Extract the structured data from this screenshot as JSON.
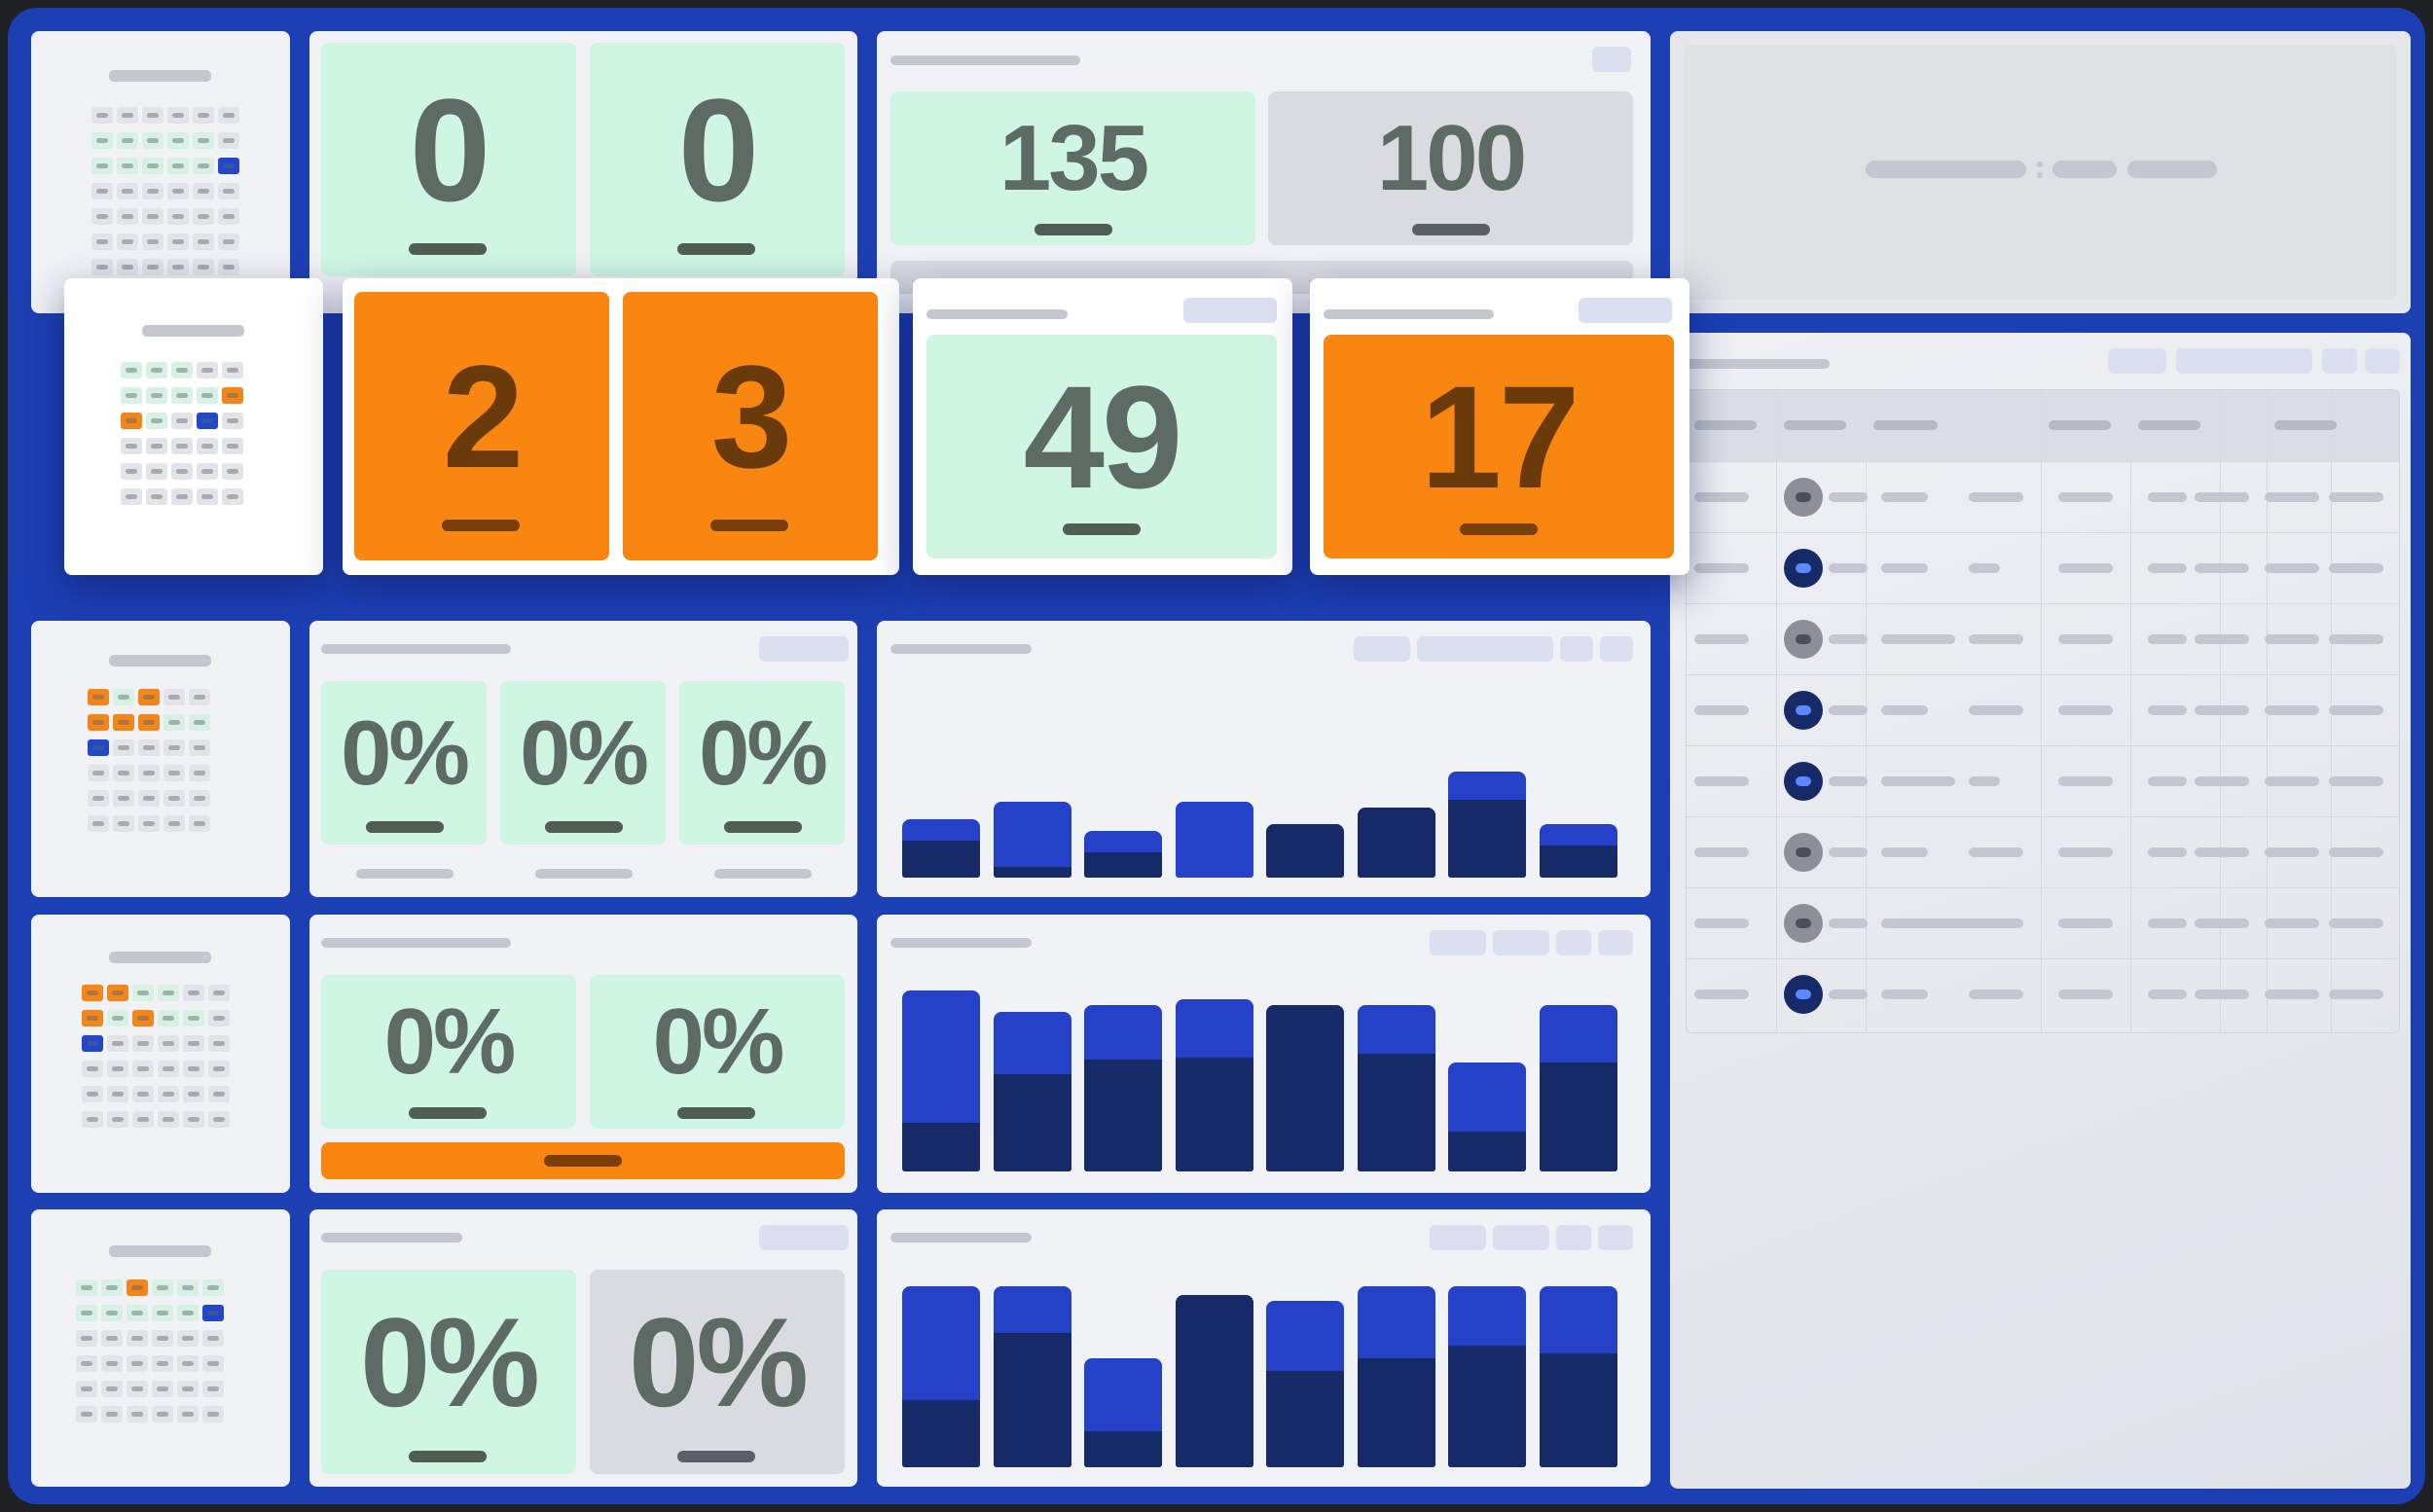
{
  "colors": {
    "frame": "#1c3fb3",
    "green_tile": "#cff6e3",
    "gray_tile": "#d9dbe1",
    "alert": "#f88610",
    "bar_light": "#2541c8",
    "bar_dark": "#172a68"
  },
  "row1": {
    "stat_a": "0",
    "stat_b": "0",
    "value_main": "135",
    "value_secondary": "100"
  },
  "row2": {
    "stat_a": "2",
    "stat_b": "3",
    "value_main": "49",
    "value_alert": "17"
  },
  "row3": {
    "pct_a": "0%",
    "pct_b": "0%",
    "pct_c": "0%"
  },
  "row4": {
    "pct_a": "0%",
    "pct_b": "0%"
  },
  "row5": {
    "pct_a": "0%",
    "pct_b": "0%"
  },
  "charts": [
    {
      "values": [
        [
          0.42,
          0.27
        ],
        [
          0.55,
          0.08
        ],
        [
          0.34,
          0.18
        ],
        [
          0.55,
          0.0
        ],
        [
          0.39,
          0.39
        ],
        [
          0.51,
          0.51
        ],
        [
          0.77,
          0.56
        ],
        [
          0.39,
          0.23
        ]
      ]
    },
    {
      "values": [
        [
          1.0,
          0.27
        ],
        [
          0.88,
          0.54
        ],
        [
          0.92,
          0.62
        ],
        [
          0.95,
          0.63
        ],
        [
          0.92,
          0.92
        ],
        [
          0.92,
          0.65
        ],
        [
          0.6,
          0.22
        ],
        [
          0.92,
          0.6
        ]
      ]
    },
    {
      "values": [
        [
          1.0,
          0.37
        ],
        [
          1.0,
          0.74
        ],
        [
          0.6,
          0.2
        ],
        [
          0.95,
          0.95
        ],
        [
          0.92,
          0.53
        ],
        [
          1.0,
          0.6
        ],
        [
          1.0,
          0.67
        ],
        [
          1.0,
          0.63
        ]
      ]
    }
  ],
  "table": {
    "status_icons": [
      "grey",
      "navy",
      "grey",
      "navy",
      "navy",
      "grey",
      "grey",
      "navy"
    ]
  },
  "seat_maps": [
    [
      [
        "x",
        "x",
        "x",
        "x",
        "x",
        "x"
      ],
      [
        "g",
        "g",
        "g",
        "g",
        "g",
        "x"
      ],
      [
        "g",
        "g",
        "g",
        "g",
        "g",
        "b"
      ],
      [
        "x",
        "x",
        "x",
        "x",
        "x",
        "x"
      ],
      [
        "x",
        "x",
        "x",
        "x",
        "x",
        "x"
      ],
      [
        "x",
        "x",
        "x",
        "x",
        "x",
        "x"
      ],
      [
        "x",
        "x",
        "x",
        "x",
        "x",
        "x"
      ],
      [
        "x",
        "x",
        "x",
        "x",
        "x",
        "x"
      ]
    ],
    [
      [
        "g",
        "g",
        "g",
        "x",
        "x"
      ],
      [
        "g",
        "g",
        "g",
        "g",
        "o"
      ],
      [
        "o",
        "g",
        "x",
        "b",
        "x"
      ],
      [
        "x",
        "x",
        "x",
        "x",
        "x"
      ],
      [
        "x",
        "x",
        "x",
        "x",
        "x"
      ],
      [
        "x",
        "x",
        "x",
        "x",
        "x"
      ]
    ],
    [
      [
        "o",
        "g",
        "o",
        "x",
        "x"
      ],
      [
        "o",
        "o",
        "o",
        "g",
        "g"
      ],
      [
        "b",
        "x",
        "x",
        "x",
        "x"
      ],
      [
        "x",
        "x",
        "x",
        "x",
        "x"
      ],
      [
        "x",
        "x",
        "x",
        "x",
        "x"
      ],
      [
        "x",
        "x",
        "x",
        "x",
        "x"
      ]
    ],
    [
      [
        "o",
        "o",
        "g",
        "g",
        "x",
        "x"
      ],
      [
        "o",
        "g",
        "o",
        "g",
        "g",
        "x"
      ],
      [
        "b",
        "x",
        "x",
        "x",
        "x",
        "x"
      ],
      [
        "x",
        "x",
        "x",
        "x",
        "x",
        "x"
      ],
      [
        "x",
        "x",
        "x",
        "x",
        "x",
        "x"
      ],
      [
        "x",
        "x",
        "x",
        "x",
        "x",
        "x"
      ]
    ],
    [
      [
        "g",
        "g",
        "o",
        "g",
        "g",
        "g"
      ],
      [
        "g",
        "g",
        "g",
        "g",
        "g",
        "b"
      ],
      [
        "x",
        "x",
        "x",
        "x",
        "x",
        "x"
      ],
      [
        "x",
        "x",
        "x",
        "x",
        "x",
        "x"
      ],
      [
        "x",
        "x",
        "x",
        "x",
        "x",
        "x"
      ],
      [
        "x",
        "x",
        "x",
        "x",
        "x",
        "x"
      ]
    ]
  ]
}
